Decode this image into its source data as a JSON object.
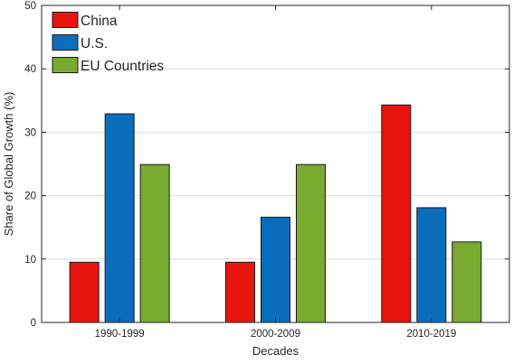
{
  "chart_data": {
    "type": "bar",
    "title": "",
    "xlabel": "Decades",
    "ylabel": "Share of Global Growth (%)",
    "categories": [
      "1990-1999",
      "2000-2009",
      "2010-2019"
    ],
    "series": [
      {
        "name": "China",
        "color": "#e8150f",
        "values": [
          9.5,
          9.5,
          34.3
        ]
      },
      {
        "name": "U.S.",
        "color": "#0a6ebd",
        "values": [
          32.9,
          16.6,
          18.1
        ]
      },
      {
        "name": "EU Countries",
        "color": "#78ab30",
        "values": [
          24.9,
          24.9,
          12.7
        ]
      }
    ],
    "ylim": [
      0,
      50
    ],
    "yticks": [
      0,
      10,
      20,
      30,
      40,
      50
    ],
    "grid": "horizontal",
    "legend_position": "top-left"
  }
}
